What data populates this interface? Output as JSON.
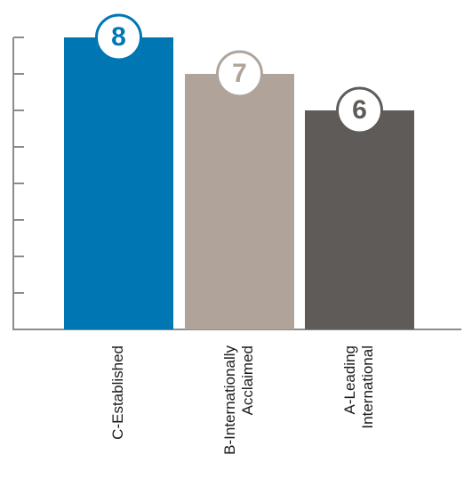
{
  "chart_data": {
    "type": "bar",
    "title": "",
    "xlabel": "",
    "ylabel": "",
    "ylim": [
      0,
      8
    ],
    "categories": [
      "C-Established",
      "B-Internationally Acclaimed",
      "A-Leading International"
    ],
    "category_lines": [
      [
        "C-Established"
      ],
      [
        "B-Internationally",
        "Acclaimed"
      ],
      [
        "A-Leading",
        "International"
      ]
    ],
    "values": [
      8,
      7,
      6
    ],
    "data_labels": [
      "8",
      "7",
      "6"
    ],
    "bar_colors": [
      "#0077b3",
      "#b0a49a",
      "#5e5b58"
    ],
    "label_colors": [
      "#0077b3",
      "#b0a49a",
      "#5e5b58"
    ],
    "axis_color": "#8c8c8c",
    "grid": false,
    "tick_labels_shown": false
  }
}
